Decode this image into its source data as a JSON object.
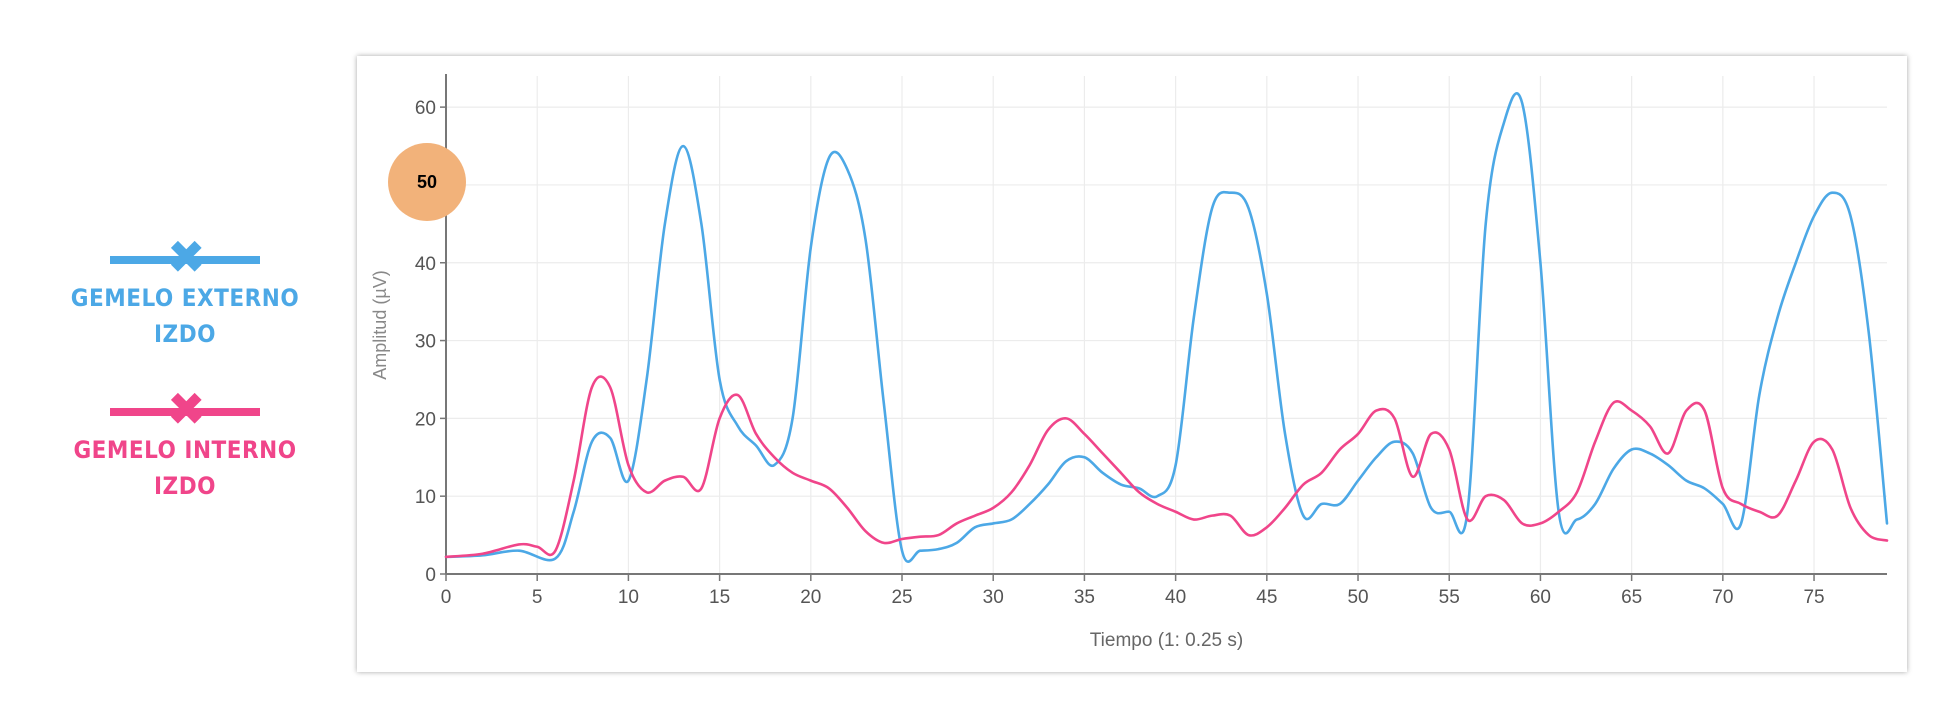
{
  "legend": {
    "items": [
      {
        "label_line1": "GEMELO EXTERNO",
        "label_line2": "IZDO",
        "color": "#4ca8e6",
        "icon": "cross-marker-icon"
      },
      {
        "label_line1": "GEMELO INTERNO",
        "label_line2": "IZDO",
        "color": "#f0458a",
        "icon": "cross-marker-icon"
      }
    ]
  },
  "badge": {
    "value": "50",
    "color": "#f2b27a"
  },
  "chart_data": {
    "type": "line",
    "title": "",
    "xlabel": "Tiempo (1: 0.25 s)",
    "ylabel": "Amplitud (µV)",
    "xlim": [
      0,
      79
    ],
    "ylim": [
      0,
      64
    ],
    "xticks": [
      0,
      5,
      10,
      15,
      20,
      25,
      30,
      35,
      40,
      45,
      50,
      55,
      60,
      65,
      70,
      75
    ],
    "yticks": [
      0,
      10,
      20,
      30,
      40,
      50,
      60
    ],
    "grid": true,
    "series": [
      {
        "name": "GEMELO EXTERNO IZDO",
        "color": "#4ca8e6",
        "x": [
          0,
          2,
          4,
          6,
          7,
          8,
          9,
          10,
          11,
          12,
          13,
          14,
          15,
          16,
          17,
          18,
          19,
          20,
          21,
          22,
          23,
          24,
          25,
          26,
          27,
          28,
          29,
          30,
          31,
          32,
          33,
          34,
          35,
          36,
          37,
          38,
          39,
          40,
          41,
          42,
          43,
          44,
          45,
          46,
          47,
          48,
          49,
          50,
          51,
          52,
          53,
          54,
          55,
          56,
          57,
          58,
          59,
          60,
          61,
          62,
          63,
          64,
          65,
          66,
          67,
          68,
          69,
          70,
          71,
          72,
          73,
          74,
          75,
          76,
          77,
          78,
          79
        ],
        "y": [
          2.2,
          2.4,
          3,
          2,
          8,
          17,
          17.5,
          12,
          25,
          45,
          55,
          45,
          25,
          19,
          16.5,
          14,
          20,
          42,
          53.5,
          52,
          43,
          22,
          3,
          3,
          3.2,
          4,
          6,
          6.5,
          7,
          9,
          11.5,
          14.5,
          15,
          13,
          11.5,
          11,
          10,
          14,
          33,
          47,
          49,
          47,
          36,
          18,
          7.5,
          9,
          9,
          12,
          15,
          17,
          15.5,
          8.5,
          8,
          8,
          45,
          58,
          60.5,
          40,
          8,
          7,
          9,
          13.5,
          16,
          15.5,
          14,
          12,
          11,
          9,
          6.5,
          23,
          33,
          40,
          46,
          49,
          46,
          31,
          6.5
        ]
      },
      {
        "name": "GEMELO INTERNO IZDO",
        "color": "#f0458a",
        "x": [
          0,
          2,
          4,
          5,
          6,
          7,
          8,
          9,
          10,
          11,
          12,
          13,
          14,
          15,
          16,
          17,
          18,
          19,
          20,
          21,
          22,
          23,
          24,
          25,
          26,
          27,
          28,
          29,
          30,
          31,
          32,
          33,
          34,
          35,
          36,
          37,
          38,
          39,
          40,
          41,
          42,
          43,
          44,
          45,
          46,
          47,
          48,
          49,
          50,
          51,
          52,
          53,
          54,
          55,
          56,
          57,
          58,
          59,
          60,
          61,
          62,
          63,
          64,
          65,
          66,
          67,
          68,
          69,
          70,
          71,
          72,
          73,
          74,
          75,
          76,
          77,
          78,
          79
        ],
        "y": [
          2.2,
          2.6,
          3.8,
          3.5,
          3,
          12,
          24,
          24,
          14,
          10.5,
          12,
          12.5,
          11,
          20,
          23,
          18,
          15,
          13,
          12,
          11,
          8.5,
          5.5,
          4,
          4.5,
          4.8,
          5,
          6.5,
          7.5,
          8.5,
          10.5,
          14,
          18.5,
          20,
          18,
          15.5,
          13,
          10.5,
          9,
          8,
          7,
          7.5,
          7.5,
          5,
          6,
          8.5,
          11.5,
          13,
          16,
          18,
          21,
          20,
          12.5,
          18,
          16,
          7,
          10,
          9.5,
          6.5,
          6.5,
          8,
          10.5,
          17,
          22,
          21,
          19,
          15.5,
          21,
          21,
          11,
          9,
          8,
          7.5,
          12,
          17,
          16,
          8.5,
          5,
          4.3
        ]
      }
    ]
  }
}
